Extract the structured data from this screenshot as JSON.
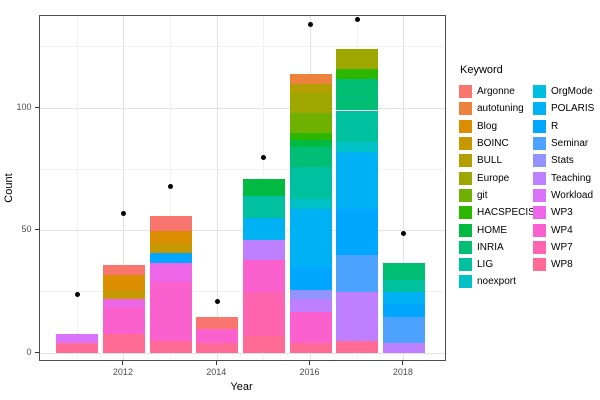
{
  "chart_data": {
    "type": "bar",
    "stacked": true,
    "title": "",
    "xlabel": "Year",
    "ylabel": "Count",
    "legend_title": "Keyword",
    "x_major_years": [
      2012,
      2014,
      2016,
      2018
    ],
    "x_tick_labels": [
      "2012",
      "2014",
      "2016",
      "2018"
    ],
    "x_minor_years": [
      2011,
      2013,
      2015,
      2017
    ],
    "y_major_ticks": [
      0,
      50,
      100
    ],
    "y_tick_labels": [
      "0",
      "50",
      "100"
    ],
    "y_minor_ticks": [
      25,
      75,
      125
    ],
    "ylim": [
      0,
      137
    ],
    "grid": true,
    "legend_position": "right",
    "legend_column_split": 12,
    "keywords": [
      {
        "name": "Argonne",
        "color": "#F8766D"
      },
      {
        "name": "autotuning",
        "color": "#EC823C"
      },
      {
        "name": "Blog",
        "color": "#DB8E00"
      },
      {
        "name": "BOINC",
        "color": "#C79800"
      },
      {
        "name": "BULL",
        "color": "#B3A000"
      },
      {
        "name": "Europe",
        "color": "#9DA700"
      },
      {
        "name": "git",
        "color": "#6FB000"
      },
      {
        "name": "HACSPECIS",
        "color": "#2CB600"
      },
      {
        "name": "HOME",
        "color": "#00BA42"
      },
      {
        "name": "INRIA",
        "color": "#00BF74"
      },
      {
        "name": "LIG",
        "color": "#00C19F"
      },
      {
        "name": "noexport",
        "color": "#00C1C5"
      },
      {
        "name": "OrgMode",
        "color": "#00BEE0"
      },
      {
        "name": "POLARIS",
        "color": "#00B2F3"
      },
      {
        "name": "R",
        "color": "#00A6FF"
      },
      {
        "name": "Seminar",
        "color": "#4DA1FF"
      },
      {
        "name": "Stats",
        "color": "#9193FF"
      },
      {
        "name": "Teaching",
        "color": "#BE80FF"
      },
      {
        "name": "Workload",
        "color": "#DB72FB"
      },
      {
        "name": "WP3",
        "color": "#EE66E8"
      },
      {
        "name": "WP4",
        "color": "#FB61CE"
      },
      {
        "name": "WP7",
        "color": "#FF64B0"
      },
      {
        "name": "WP8",
        "color": "#FF6B94"
      }
    ],
    "bars": [
      {
        "year": 2011,
        "total": 8,
        "segments": [
          {
            "k": "WP8",
            "v": 4
          },
          {
            "k": "Workload",
            "v": 4
          }
        ]
      },
      {
        "year": 2012,
        "total": 36,
        "segments": [
          {
            "k": "WP8",
            "v": 8
          },
          {
            "k": "WP4",
            "v": 11
          },
          {
            "k": "WP3",
            "v": 3
          },
          {
            "k": "BOINC",
            "v": 4
          },
          {
            "k": "Blog",
            "v": 6
          },
          {
            "k": "Argonne",
            "v": 4
          }
        ]
      },
      {
        "year": 2013,
        "total": 56,
        "segments": [
          {
            "k": "WP8",
            "v": 5
          },
          {
            "k": "WP4",
            "v": 24
          },
          {
            "k": "WP3",
            "v": 8
          },
          {
            "k": "R",
            "v": 4
          },
          {
            "k": "BOINC",
            "v": 4
          },
          {
            "k": "Blog",
            "v": 5
          },
          {
            "k": "Argonne",
            "v": 6
          }
        ]
      },
      {
        "year": 2014,
        "total": 15,
        "segments": [
          {
            "k": "WP8",
            "v": 4
          },
          {
            "k": "WP4",
            "v": 6
          },
          {
            "k": "Argonne",
            "v": 5
          }
        ]
      },
      {
        "year": 2015,
        "total": 71,
        "segments": [
          {
            "k": "WP8",
            "v": 7
          },
          {
            "k": "WP7",
            "v": 18
          },
          {
            "k": "WP4",
            "v": 13
          },
          {
            "k": "Teaching",
            "v": 8
          },
          {
            "k": "POLARIS",
            "v": 9
          },
          {
            "k": "LIG",
            "v": 9
          },
          {
            "k": "HOME",
            "v": 7
          }
        ]
      },
      {
        "year": 2016,
        "total": 114,
        "segments": [
          {
            "k": "WP8",
            "v": 4
          },
          {
            "k": "WP4",
            "v": 13
          },
          {
            "k": "Teaching",
            "v": 5
          },
          {
            "k": "Stats",
            "v": 4
          },
          {
            "k": "R",
            "v": 9
          },
          {
            "k": "POLARIS",
            "v": 24
          },
          {
            "k": "noexport",
            "v": 4
          },
          {
            "k": "LIG",
            "v": 13
          },
          {
            "k": "INRIA",
            "v": 8
          },
          {
            "k": "HOME",
            "v": 3
          },
          {
            "k": "HACSPECIS",
            "v": 3
          },
          {
            "k": "git",
            "v": 8
          },
          {
            "k": "Europe",
            "v": 8
          },
          {
            "k": "BULL",
            "v": 4
          },
          {
            "k": "autotuning",
            "v": 4
          }
        ]
      },
      {
        "year": 2017,
        "total": 124,
        "segments": [
          {
            "k": "WP8",
            "v": 5
          },
          {
            "k": "Teaching",
            "v": 20
          },
          {
            "k": "Seminar",
            "v": 15
          },
          {
            "k": "R",
            "v": 19
          },
          {
            "k": "POLARIS",
            "v": 23
          },
          {
            "k": "noexport",
            "v": 4
          },
          {
            "k": "LIG",
            "v": 13
          },
          {
            "k": "INRIA",
            "v": 13
          },
          {
            "k": "HACSPECIS",
            "v": 4
          },
          {
            "k": "Europe",
            "v": 8
          }
        ]
      },
      {
        "year": 2018,
        "total": 37,
        "segments": [
          {
            "k": "Teaching",
            "v": 4
          },
          {
            "k": "Seminar",
            "v": 11
          },
          {
            "k": "R",
            "v": 5
          },
          {
            "k": "POLARIS",
            "v": 5
          },
          {
            "k": "LIG",
            "v": 5
          },
          {
            "k": "INRIA",
            "v": 7
          }
        ]
      }
    ],
    "points": [
      {
        "year": 2011,
        "value": 24
      },
      {
        "year": 2012,
        "value": 57
      },
      {
        "year": 2013,
        "value": 68
      },
      {
        "year": 2014,
        "value": 21
      },
      {
        "year": 2015,
        "value": 80
      },
      {
        "year": 2016,
        "value": 134
      },
      {
        "year": 2017,
        "value": 136
      },
      {
        "year": 2018,
        "value": 49
      }
    ]
  }
}
